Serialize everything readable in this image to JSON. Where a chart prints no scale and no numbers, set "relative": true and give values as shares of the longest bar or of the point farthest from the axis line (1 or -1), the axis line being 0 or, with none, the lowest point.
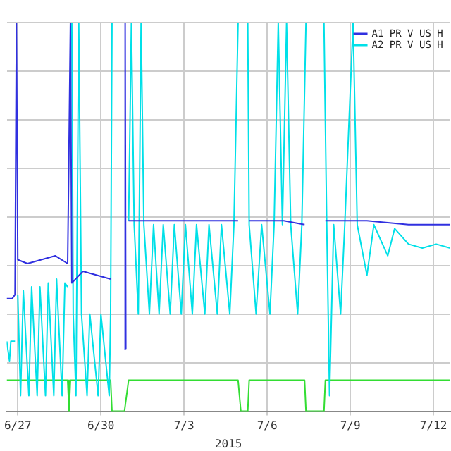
{
  "chart_data": {
    "type": "line",
    "relative": true,
    "xlabel": "2015",
    "xlim": [
      "2015-06-26T14:24",
      "2015-07-12T14:24"
    ],
    "xticks": [
      {
        "value": "2015-06-27",
        "label": "6/27"
      },
      {
        "value": "2015-06-30",
        "label": "6/30"
      },
      {
        "value": "2015-07-03",
        "label": "7/3"
      },
      {
        "value": "2015-07-06",
        "label": "7/6"
      },
      {
        "value": "2015-07-09",
        "label": "7/9"
      },
      {
        "value": "2015-07-12",
        "label": "7/12"
      }
    ],
    "grid": true,
    "legend": "top right",
    "marker": "none",
    "series": [
      {
        "name": "A1 PR V US H",
        "color": "#3030e0",
        "x": [
          "2015-06-26T14:24",
          "2015-06-26T19:12",
          "2015-06-26T21:36",
          "2015-06-26T22:48",
          "2015-06-27T00:00",
          "2015-06-27T08:24",
          "2015-06-27T20:24",
          "2015-06-28T08:24",
          "2015-06-28T19:12",
          "2015-06-28T21:36",
          "2015-06-28T22:48",
          "2015-06-29T08:24",
          "2015-06-29T20:24",
          "2015-06-30T08:24",
          "2015-06-30T14:24",
          "2015-06-30T20:24",
          "2015-06-30T21:00",
          "2015-06-30T21:36",
          "2015-06-30T22:48",
          "2015-07-01T00:00",
          "2015-07-02T14:24",
          "2015-07-03T14:24",
          "2015-07-04T22:48",
          "2015-07-05T03:36",
          "2015-07-05T08:24",
          "2015-07-06T14:24",
          "2015-07-07T08:24",
          "2015-07-07T16:48",
          "2015-07-08T02:24",
          "2015-07-09T14:24",
          "2015-07-11T02:24",
          "2015-07-12T14:24"
        ],
        "values": [
          0.29,
          0.29,
          0.3,
          1,
          0.39,
          0.38,
          0.39,
          0.4,
          0.38,
          1,
          0.33,
          0.36,
          0.35,
          0.34,
          null,
          0.16,
          1,
          0.16,
          null,
          0.49,
          0.49,
          0.49,
          0.49,
          null,
          0.49,
          0.49,
          0.48,
          null,
          0.49,
          0.49,
          0.48,
          0.48
        ]
      },
      {
        "name": "A2 PR V US H",
        "color": "#00e0e8",
        "x": [
          "2015-06-26T14:24",
          "2015-06-26T16:48",
          "2015-06-26T18:00",
          "2015-06-26T21:36",
          "2015-06-26T22:48",
          "2015-06-27T00:00",
          "2015-06-27T02:24",
          "2015-06-27T04:48",
          "2015-06-27T09:36",
          "2015-06-27T12:00",
          "2015-06-27T16:48",
          "2015-06-27T19:12",
          "2015-06-28T00:00",
          "2015-06-28T02:24",
          "2015-06-28T07:12",
          "2015-06-28T09:36",
          "2015-06-28T14:24",
          "2015-06-28T16:48",
          "2015-06-28T19:12",
          "2015-06-28T20:24",
          "2015-06-28T22:48",
          "2015-06-29T00:00",
          "2015-06-29T02:24",
          "2015-06-29T04:48",
          "2015-06-29T07:12",
          "2015-06-29T12:00",
          "2015-06-29T14:24",
          "2015-06-29T21:36",
          "2015-06-30T00:00",
          "2015-06-30T07:12",
          "2015-06-30T08:24",
          "2015-06-30T09:36",
          "2015-06-30T12:00",
          "2015-07-01T00:00",
          "2015-07-01T02:24",
          "2015-07-01T04:48",
          "2015-07-01T08:24",
          "2015-07-01T10:48",
          "2015-07-01T13:12",
          "2015-07-01T18:00",
          "2015-07-01T21:36",
          "2015-07-02T02:24",
          "2015-07-02T06:00",
          "2015-07-02T12:00",
          "2015-07-02T15:36",
          "2015-07-02T21:36",
          "2015-07-03T01:12",
          "2015-07-03T07:12",
          "2015-07-03T10:48",
          "2015-07-03T18:00",
          "2015-07-03T21:36",
          "2015-07-04T04:48",
          "2015-07-04T08:24",
          "2015-07-04T15:36",
          "2015-07-04T19:12",
          "2015-07-04T22:48",
          "2015-07-05T01:12",
          "2015-07-05T07:12",
          "2015-07-05T08:24",
          "2015-07-05T14:24",
          "2015-07-05T19:12",
          "2015-07-06T02:24",
          "2015-07-06T06:00",
          "2015-07-06T09:36",
          "2015-07-06T13:12",
          "2015-07-06T16:48",
          "2015-07-06T20:24",
          "2015-07-07T02:24",
          "2015-07-07T06:00",
          "2015-07-07T09:36",
          "2015-07-07T14:24",
          "2015-07-08T01:12",
          "2015-07-08T03:36",
          "2015-07-08T06:00",
          "2015-07-08T09:36",
          "2015-07-08T15:36",
          "2015-07-08T19:12",
          "2015-07-09T02:24",
          "2015-07-09T06:00",
          "2015-07-09T14:24",
          "2015-07-09T20:24",
          "2015-07-10T08:24",
          "2015-07-10T14:24",
          "2015-07-11T02:24",
          "2015-07-11T14:24",
          "2015-07-12T02:24",
          "2015-07-12T14:24"
        ],
        "values": [
          0.18,
          0.13,
          0.18,
          0.18,
          null,
          0.3,
          0.04,
          0.31,
          0.04,
          0.32,
          0.04,
          0.32,
          0.04,
          0.33,
          0.04,
          0.34,
          0.04,
          0.33,
          0.32,
          null,
          1,
          0.25,
          0.04,
          1,
          0.25,
          0.04,
          0.25,
          0.04,
          0.25,
          0.04,
          0.25,
          1,
          null,
          0.49,
          1,
          0.48,
          0.25,
          1,
          0.48,
          0.25,
          0.48,
          0.25,
          0.48,
          0.25,
          0.48,
          0.25,
          0.48,
          0.25,
          0.48,
          0.25,
          0.48,
          0.25,
          0.48,
          0.25,
          0.48,
          1,
          null,
          1,
          0.48,
          0.25,
          0.48,
          0.25,
          0.48,
          1,
          0.48,
          1,
          0.48,
          0.25,
          0.48,
          1,
          null,
          1,
          0.48,
          0.04,
          0.48,
          0.25,
          0.48,
          1,
          0.48,
          0.35,
          0.48,
          0.4,
          0.47,
          0.43,
          0.42,
          0.43,
          0.42
        ]
      },
      {
        "color": "#33dd33",
        "x": [
          "2015-06-26T14:24",
          "2015-06-28T19:12",
          "2015-06-28T20:24",
          "2015-06-28T21:36",
          "2015-06-30T08:24",
          "2015-06-30T09:36",
          "2015-06-30T20:24",
          "2015-07-01T00:00",
          "2015-07-04T22:48",
          "2015-07-05T01:12",
          "2015-07-05T07:12",
          "2015-07-05T08:24",
          "2015-07-07T08:24",
          "2015-07-07T09:36",
          "2015-07-08T01:12",
          "2015-07-08T02:24",
          "2015-07-12T14:24"
        ],
        "values": [
          0.08,
          0.08,
          0,
          0.08,
          0.08,
          0,
          0,
          0.08,
          0.08,
          0,
          0,
          0.08,
          0.08,
          0,
          0,
          0.08,
          0.08
        ]
      }
    ]
  }
}
